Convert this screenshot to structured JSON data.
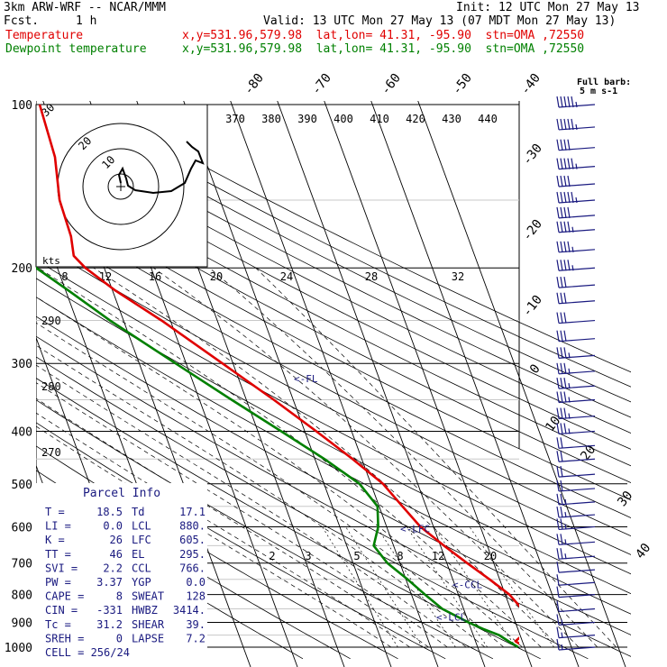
{
  "header": {
    "model": "3km ARW-WRF -- NCAR/MMM",
    "init": "Init: 12 UTC Mon 27 May 13",
    "fcst_label": "Fcst.",
    "fcst_value": "1 h",
    "valid": "Valid: 13 UTC Mon 27 May 13 (07 MDT Mon 27 May 13)",
    "temp_label": "Temperature",
    "temp_loc": "x,y=531.96,579.98  lat,lon= 41.31, -95.90  stn=OMA ,72550",
    "dew_label": "Dewpoint temperature",
    "dew_loc": "x,y=531.96,579.98  lat,lon= 41.31, -95.90  stn=OMA ,72550"
  },
  "colors": {
    "temperature": "#e00000",
    "dewpoint": "#008000",
    "wind": "#1a1a80",
    "grid": "#000000"
  },
  "chart_data": {
    "type": "line",
    "title": "",
    "xlabel": "",
    "ylabel": "",
    "pressure_axis": {
      "ticks": [
        100,
        200,
        300,
        400,
        500,
        600,
        700,
        800,
        900,
        1000
      ],
      "scale": "log",
      "range": [
        100,
        1000
      ]
    },
    "isotherm_labels": [
      -80,
      -70,
      -60,
      -50,
      -40,
      -30,
      -20,
      -10,
      0,
      10,
      20,
      30,
      40
    ],
    "potential_temp_labels": [
      370,
      380,
      390,
      400,
      410,
      420,
      430,
      440
    ],
    "left_theta_labels": [
      290,
      280,
      270
    ],
    "mixing_ratio_labels": [
      "2",
      "3",
      "5",
      "8",
      "12",
      "20"
    ],
    "series": [
      {
        "name": "Temperature",
        "color": "#e00000",
        "points": [
          [
            1000,
            18.5
          ],
          [
            975,
            17.0
          ],
          [
            950,
            19.0
          ],
          [
            925,
            21.0
          ],
          [
            900,
            21.5
          ],
          [
            850,
            21.0
          ],
          [
            800,
            19.5
          ],
          [
            750,
            16.5
          ],
          [
            700,
            13.0
          ],
          [
            650,
            9.5
          ],
          [
            600,
            6.0
          ],
          [
            550,
            3.8
          ],
          [
            500,
            1.5
          ],
          [
            450,
            -3.0
          ],
          [
            400,
            -8.5
          ],
          [
            350,
            -15.0
          ],
          [
            300,
            -23.0
          ],
          [
            250,
            -32.5
          ],
          [
            220,
            -40.0
          ],
          [
            200,
            -44.5
          ],
          [
            190,
            -46.0
          ],
          [
            175,
            -45.0
          ],
          [
            150,
            -44.5
          ],
          [
            125,
            -42.0
          ],
          [
            100,
            -41.0
          ]
        ]
      },
      {
        "name": "Dewpoint temperature",
        "color": "#008000",
        "points": [
          [
            1000,
            17.1
          ],
          [
            975,
            15.5
          ],
          [
            950,
            14.0
          ],
          [
            925,
            11.0
          ],
          [
            900,
            8.5
          ],
          [
            850,
            4.0
          ],
          [
            800,
            1.5
          ],
          [
            750,
            -1.0
          ],
          [
            700,
            -4.0
          ],
          [
            650,
            -5.5
          ],
          [
            600,
            -3.0
          ],
          [
            550,
            -1.5
          ],
          [
            500,
            -3.5
          ],
          [
            450,
            -9.0
          ],
          [
            400,
            -16.0
          ],
          [
            350,
            -24.0
          ],
          [
            300,
            -33.0
          ],
          [
            250,
            -43.5
          ],
          [
            220,
            -50.0
          ],
          [
            200,
            -55.0
          ],
          [
            175,
            -59.0
          ],
          [
            150,
            -64.0
          ],
          [
            125,
            -72.0
          ],
          [
            100,
            -81.0
          ]
        ]
      }
    ],
    "level_markers": [
      {
        "label": "<-FL",
        "pressure": 320
      },
      {
        "label": "<-LFC",
        "pressure": 605
      },
      {
        "label": "<-CCL",
        "pressure": 766
      },
      {
        "label": "<-LCL",
        "pressure": 880
      }
    ],
    "hodograph": {
      "units": "kts",
      "ring_labels": [
        "30",
        "20",
        "10"
      ],
      "speed_ticks": [
        "8",
        "12",
        "16",
        "20",
        "24",
        "28",
        "32"
      ]
    },
    "wind_barbs_label": "Full barb:\n5 m s-1",
    "wind_barbs": [
      {
        "p": 100,
        "spd": 45
      },
      {
        "p": 110,
        "spd": 45
      },
      {
        "p": 120,
        "spd": 40
      },
      {
        "p": 130,
        "spd": 45
      },
      {
        "p": 140,
        "spd": 40
      },
      {
        "p": 150,
        "spd": 45
      },
      {
        "p": 160,
        "spd": 40
      },
      {
        "p": 170,
        "spd": 35
      },
      {
        "p": 185,
        "spd": 35
      },
      {
        "p": 200,
        "spd": 35
      },
      {
        "p": 215,
        "spd": 30
      },
      {
        "p": 230,
        "spd": 30
      },
      {
        "p": 250,
        "spd": 30
      },
      {
        "p": 270,
        "spd": 30
      },
      {
        "p": 290,
        "spd": 25
      },
      {
        "p": 310,
        "spd": 25
      },
      {
        "p": 330,
        "spd": 25
      },
      {
        "p": 350,
        "spd": 25
      },
      {
        "p": 375,
        "spd": 25
      },
      {
        "p": 400,
        "spd": 25
      },
      {
        "p": 425,
        "spd": 20
      },
      {
        "p": 450,
        "spd": 20
      },
      {
        "p": 480,
        "spd": 20
      },
      {
        "p": 510,
        "spd": 20
      },
      {
        "p": 540,
        "spd": 15
      },
      {
        "p": 570,
        "spd": 15
      },
      {
        "p": 600,
        "spd": 15
      },
      {
        "p": 640,
        "spd": 15
      },
      {
        "p": 680,
        "spd": 15
      },
      {
        "p": 720,
        "spd": 10
      },
      {
        "p": 760,
        "spd": 10
      },
      {
        "p": 800,
        "spd": 10
      },
      {
        "p": 850,
        "spd": 10
      },
      {
        "p": 900,
        "spd": 5
      },
      {
        "p": 950,
        "spd": 5
      },
      {
        "p": 1000,
        "spd": 5
      }
    ]
  },
  "parcel_info": {
    "title": "Parcel Info",
    "rows": [
      {
        "l1": "T",
        "v1": "18.5",
        "l2": "Td",
        "v2": "17.1"
      },
      {
        "l1": "LI",
        "v1": "0.0",
        "l2": "LCL",
        "v2": "880."
      },
      {
        "l1": "K",
        "v1": "26",
        "l2": "LFC",
        "v2": "605."
      },
      {
        "l1": "TT",
        "v1": "46",
        "l2": "EL",
        "v2": "295."
      },
      {
        "l1": "SVI",
        "v1": "2.2",
        "l2": "CCL",
        "v2": "766."
      },
      {
        "l1": "PW",
        "v1": "3.37",
        "l2": "YGP",
        "v2": "0.0"
      },
      {
        "l1": "CAPE",
        "v1": "8",
        "l2": "SWEAT",
        "v2": "128"
      },
      {
        "l1": "CIN",
        "v1": "-331",
        "l2": "HWBZ",
        "v2": "3414."
      },
      {
        "l1": "Tc",
        "v1": "31.2",
        "l2": "SHEAR",
        "v2": "39."
      },
      {
        "l1": "SREH",
        "v1": "0",
        "l2": "LAPSE",
        "v2": "7.2"
      }
    ],
    "cell": "CELL = 256/24"
  }
}
